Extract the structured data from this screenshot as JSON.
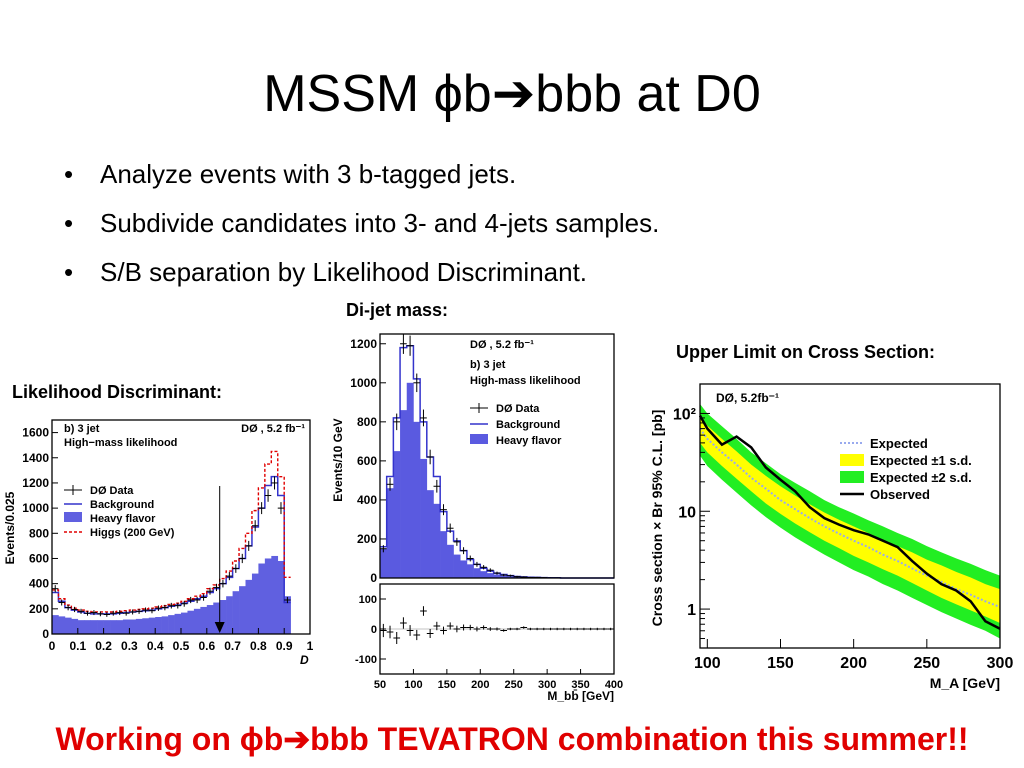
{
  "slide": {
    "title": "MSSM ϕb➔bbb at D0",
    "bullets": [
      "Analyze events with 3 b-tagged jets.",
      "Subdivide candidates into 3- and 4-jets samples.",
      "S/B separation by Likelihood Discriminant."
    ],
    "captions": {
      "likelihood": "Likelihood Discriminant:",
      "dijet": "Di-jet mass:",
      "limit": "Upper Limit on Cross Section:"
    },
    "footer": "Working on ϕb➔bbb TEVATRON combination this summer!!"
  },
  "chart_data": [
    {
      "type": "bar",
      "panel_labels": [
        "b) 3 jet",
        "High−mass likelihood"
      ],
      "experiment_label": "DØ , 5.2 fb⁻¹",
      "xlabel": "D",
      "ylabel": "Events/0.025",
      "xlim": [
        0,
        1
      ],
      "ylim": [
        0,
        1700
      ],
      "xticks": [
        "0",
        "0.1",
        "0.2",
        "0.3",
        "0.4",
        "0.5",
        "0.6",
        "0.7",
        "0.8",
        "0.9",
        "1"
      ],
      "yticks": [
        "0",
        "200",
        "400",
        "600",
        "800",
        "1000",
        "1200",
        "1400",
        "1600"
      ],
      "legend": [
        "DØ  Data",
        "Background",
        "Heavy flavor",
        "Higgs (200 GeV)"
      ],
      "legend_position": "left",
      "colors": {
        "data": "#000000",
        "background": "#3333cc",
        "heavy_flavor": "#6060e0",
        "higgs": "#e00000"
      },
      "x": [
        0.0125,
        0.0375,
        0.0625,
        0.0875,
        0.1125,
        0.1375,
        0.1625,
        0.1875,
        0.2125,
        0.2375,
        0.2625,
        0.2875,
        0.3125,
        0.3375,
        0.3625,
        0.3875,
        0.4125,
        0.4375,
        0.4625,
        0.4875,
        0.5125,
        0.5375,
        0.5625,
        0.5875,
        0.6125,
        0.6375,
        0.6625,
        0.6875,
        0.7125,
        0.7375,
        0.7625,
        0.7875,
        0.8125,
        0.8375,
        0.8625,
        0.8875,
        0.9125
      ],
      "series": [
        {
          "name": "Heavy flavor",
          "values": [
            150,
            140,
            130,
            120,
            110,
            110,
            110,
            110,
            110,
            110,
            110,
            115,
            115,
            120,
            125,
            130,
            135,
            140,
            150,
            160,
            170,
            185,
            200,
            215,
            230,
            250,
            270,
            300,
            340,
            380,
            430,
            480,
            560,
            600,
            620,
            580,
            300
          ]
        },
        {
          "name": "Background",
          "values": [
            330,
            260,
            210,
            190,
            175,
            165,
            160,
            160,
            160,
            160,
            165,
            170,
            175,
            180,
            185,
            190,
            200,
            210,
            220,
            230,
            245,
            260,
            280,
            300,
            330,
            360,
            400,
            450,
            520,
            600,
            700,
            850,
            1000,
            1180,
            1250,
            1100,
            250
          ]
        },
        {
          "name": "DØ  Data",
          "values": [
            360,
            250,
            210,
            195,
            180,
            165,
            170,
            160,
            155,
            165,
            170,
            165,
            175,
            180,
            190,
            185,
            205,
            210,
            225,
            225,
            240,
            270,
            270,
            290,
            340,
            370,
            400,
            460,
            520,
            600,
            700,
            860,
            1000,
            1100,
            1200,
            1000,
            270
          ]
        },
        {
          "name": "Higgs (200 GeV)",
          "values": [
            350,
            280,
            230,
            205,
            190,
            180,
            175,
            175,
            175,
            175,
            180,
            185,
            190,
            195,
            200,
            205,
            215,
            225,
            235,
            245,
            260,
            280,
            300,
            320,
            360,
            390,
            440,
            500,
            580,
            680,
            800,
            980,
            1160,
            1350,
            1450,
            1250,
            450
          ]
        }
      ],
      "annotations": [
        "arrow at D = 0.65"
      ]
    },
    {
      "type": "bar",
      "panel_labels": [
        "b) 3 jet",
        "High-mass likelihood"
      ],
      "experiment_label": "DØ , 5.2 fb⁻¹",
      "xlabel": "M_bb̄ [GeV]",
      "ylabel": "Events/10 GeV",
      "xlim": [
        50,
        400
      ],
      "ylim": [
        0,
        1250
      ],
      "xticks": [
        "50",
        "100",
        "150",
        "200",
        "250",
        "300",
        "350",
        "400"
      ],
      "yticks": [
        "0",
        "200",
        "400",
        "600",
        "800",
        "1000",
        "1200"
      ],
      "legend": [
        "DØ  Data",
        "Background",
        "Heavy flavor"
      ],
      "legend_position": "top-right",
      "colors": {
        "data": "#000000",
        "background": "#3333cc",
        "heavy_flavor": "#5a5ae0"
      },
      "x": [
        55,
        65,
        75,
        85,
        95,
        105,
        115,
        125,
        135,
        145,
        155,
        165,
        175,
        185,
        195,
        205,
        215,
        225,
        235,
        245,
        255,
        265,
        275,
        285,
        295,
        305,
        315,
        325,
        335,
        345,
        355,
        365,
        375,
        385,
        395
      ],
      "series": [
        {
          "name": "Heavy flavor",
          "values": [
            150,
            460,
            650,
            860,
            1000,
            800,
            610,
            450,
            380,
            240,
            170,
            120,
            90,
            70,
            50,
            35,
            25,
            18,
            12,
            8,
            5,
            4,
            3,
            2,
            1,
            1,
            0,
            0,
            0,
            0,
            0,
            0,
            0,
            0,
            0
          ]
        },
        {
          "name": "Background",
          "values": [
            160,
            520,
            820,
            1180,
            1190,
            1020,
            800,
            620,
            520,
            340,
            240,
            190,
            140,
            95,
            70,
            50,
            35,
            25,
            18,
            12,
            8,
            6,
            4,
            3,
            2,
            1,
            1,
            0,
            0,
            0,
            0,
            0,
            0,
            0,
            0
          ]
        },
        {
          "name": "DØ  Data",
          "values": [
            150,
            480,
            800,
            1200,
            1190,
            1000,
            820,
            620,
            470,
            350,
            255,
            185,
            140,
            100,
            70,
            55,
            40,
            25,
            15,
            12,
            7,
            5,
            3,
            3,
            2,
            1,
            1,
            0,
            0,
            0,
            0,
            0,
            0,
            0,
            0
          ]
        }
      ],
      "residual_panel": {
        "ylim": [
          -150,
          150
        ],
        "yticks": [
          "100",
          "0",
          "-100"
        ],
        "x": [
          55,
          65,
          75,
          85,
          95,
          105,
          115,
          125,
          135,
          145,
          155,
          165,
          175,
          185,
          195,
          205,
          215,
          225,
          235,
          245,
          255,
          265,
          275,
          285,
          295,
          305,
          315,
          325,
          335,
          345,
          355,
          365,
          375,
          385,
          395
        ],
        "values": [
          -5,
          -10,
          -30,
          20,
          -5,
          -20,
          60,
          -15,
          10,
          -5,
          10,
          0,
          5,
          5,
          0,
          5,
          0,
          0,
          -5,
          0,
          0,
          5,
          0,
          0,
          0,
          0,
          0,
          0,
          0,
          0,
          0,
          0,
          0,
          0,
          0
        ]
      }
    },
    {
      "type": "line",
      "experiment_label": "DØ, 5.2fb⁻¹",
      "xlabel": "M_A [GeV]",
      "ylabel": "Cross section × Br 95% C.L. [pb]",
      "xlim": [
        95,
        300
      ],
      "ylim": [
        0.4,
        200
      ],
      "yscale": "log",
      "xticks": [
        "100",
        "150",
        "200",
        "250",
        "300"
      ],
      "yticks": [
        "10²",
        "10",
        "1"
      ],
      "legend": [
        "Expected",
        "Expected ±1 s.d.",
        "Expected ±2 s.d.",
        "Observed"
      ],
      "legend_position": "top-right",
      "colors": {
        "expected": "#99aaee",
        "band1": "#ffff00",
        "band2": "#22ee22",
        "observed": "#000000"
      },
      "x": [
        95,
        100,
        110,
        120,
        130,
        140,
        150,
        160,
        170,
        180,
        190,
        200,
        210,
        220,
        230,
        240,
        250,
        260,
        270,
        280,
        290,
        300
      ],
      "series": [
        {
          "name": "Expected",
          "values": [
            70,
            55,
            40,
            30,
            22,
            17,
            13,
            10.5,
            8.5,
            7,
            5.9,
            5,
            4.3,
            3.6,
            3.1,
            2.6,
            2.2,
            1.9,
            1.6,
            1.4,
            1.2,
            1.05
          ]
        },
        {
          "name": "Expected ±1 s.d. (upper)",
          "values": [
            95,
            75,
            55,
            41,
            30,
            23,
            18,
            14.5,
            11.8,
            9.7,
            8.2,
            7,
            6,
            5.1,
            4.4,
            3.8,
            3.2,
            2.8,
            2.4,
            2.1,
            1.8,
            1.6
          ]
        },
        {
          "name": "Expected ±1 s.d. (lower)",
          "values": [
            50,
            40,
            29,
            21.5,
            16,
            12,
            9.4,
            7.5,
            6.1,
            5,
            4.2,
            3.5,
            3,
            2.55,
            2.2,
            1.85,
            1.55,
            1.3,
            1.12,
            0.97,
            0.84,
            0.72
          ]
        },
        {
          "name": "Expected ±2 s.d. (upper)",
          "values": [
            125,
            100,
            74,
            55,
            40,
            31,
            24,
            19.5,
            16,
            13,
            11,
            9.5,
            8.1,
            7,
            6,
            5.2,
            4.4,
            3.8,
            3.3,
            2.9,
            2.5,
            2.2
          ]
        },
        {
          "name": "Expected ±2 s.d. (lower)",
          "values": [
            37,
            29,
            21,
            15.5,
            11.5,
            8.7,
            6.8,
            5.4,
            4.4,
            3.6,
            3,
            2.5,
            2.15,
            1.8,
            1.55,
            1.3,
            1.1,
            0.93,
            0.8,
            0.69,
            0.6,
            0.5
          ]
        },
        {
          "name": "Observed",
          "values": [
            95,
            70,
            48,
            58,
            45,
            28,
            21,
            16,
            11,
            8.5,
            7.3,
            6.4,
            5.8,
            5,
            4.3,
            3.1,
            2.3,
            1.8,
            1.55,
            1.2,
            0.75,
            0.63
          ]
        }
      ]
    }
  ]
}
